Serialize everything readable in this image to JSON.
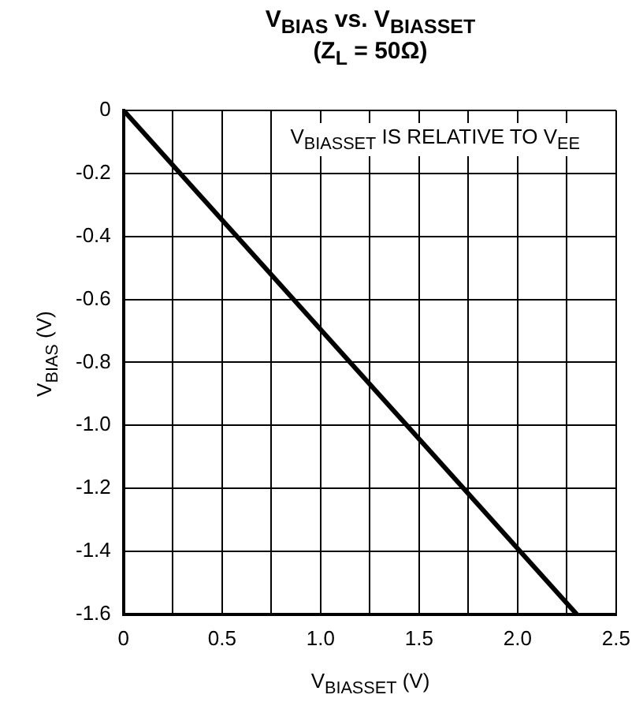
{
  "chart_data": {
    "type": "line",
    "title": "V$_{BIAS}$ vs. V$_{BIASSET}$",
    "subtitle": "(Z$_{L}$ = 50Ω)",
    "xlabel": "V$_{BIASSET}$ (V)",
    "ylabel": "V$_{BIAS}$ (V)",
    "annotations": [
      "V$_{BIASSET}$ IS RELATIVE TO V$_{EE}$"
    ],
    "series": [
      {
        "color": "#000000",
        "x": [
          0,
          2.3
        ],
        "values": [
          0,
          -1.6
        ]
      }
    ],
    "xlim": [
      0,
      2.5
    ],
    "ylim": [
      -1.6,
      0
    ],
    "xticks": [
      0,
      {
        "value": 0.25,
        "label": null
      },
      0.5,
      {
        "value": 0.75,
        "label": null
      },
      {
        "value": 1,
        "label": "1.0"
      },
      {
        "value": 1.25,
        "label": null
      },
      1.5,
      {
        "value": 1.75,
        "label": null
      },
      {
        "value": 2,
        "label": "2.0"
      },
      {
        "value": 2.25,
        "label": null
      },
      2.5
    ],
    "yticks": [
      -1.6,
      -1.4,
      -1.2,
      {
        "value": -1,
        "label": "-1.0"
      },
      -0.8,
      -0.6,
      -0.4,
      -0.2,
      0
    ],
    "grid": true,
    "legend": false,
    "marker": "none",
    "line_style": "solid"
  }
}
